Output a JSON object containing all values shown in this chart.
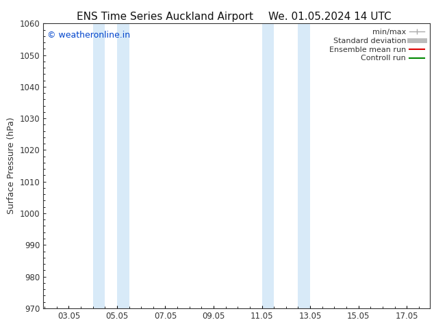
{
  "title_left": "ENS Time Series Auckland Airport",
  "title_right": "We. 01.05.2024 14 UTC",
  "ylabel": "Surface Pressure (hPa)",
  "ylim": [
    970,
    1060
  ],
  "yticks": [
    970,
    980,
    990,
    1000,
    1010,
    1020,
    1030,
    1040,
    1050,
    1060
  ],
  "xlim": [
    2.0,
    18.0
  ],
  "xtick_positions": [
    3.05,
    5.05,
    7.05,
    9.05,
    11.05,
    13.05,
    15.05,
    17.05
  ],
  "xtick_labels": [
    "03.05",
    "05.05",
    "07.05",
    "09.05",
    "11.05",
    "13.05",
    "15.05",
    "17.05"
  ],
  "shade_bands": [
    {
      "x_start": 4.05,
      "x_end": 4.55
    },
    {
      "x_start": 5.05,
      "x_end": 5.55
    },
    {
      "x_start": 11.05,
      "x_end": 11.55
    },
    {
      "x_start": 12.55,
      "x_end": 13.05
    }
  ],
  "shade_color": "#d8eaf8",
  "watermark": "© weatheronline.in",
  "watermark_color": "#0044cc",
  "legend_items": [
    {
      "label": "min/max",
      "color": "#aaaaaa",
      "lw": 1.0
    },
    {
      "label": "Standard deviation",
      "color": "#bbbbbb",
      "lw": 5.0
    },
    {
      "label": "Ensemble mean run",
      "color": "#dd0000",
      "lw": 1.5
    },
    {
      "label": "Controll run",
      "color": "#008800",
      "lw": 1.5
    }
  ],
  "bg_color": "#ffffff",
  "spine_color": "#333333",
  "tick_color": "#333333",
  "title_fontsize": 11,
  "axis_label_fontsize": 9,
  "tick_fontsize": 8.5,
  "legend_fontsize": 8
}
